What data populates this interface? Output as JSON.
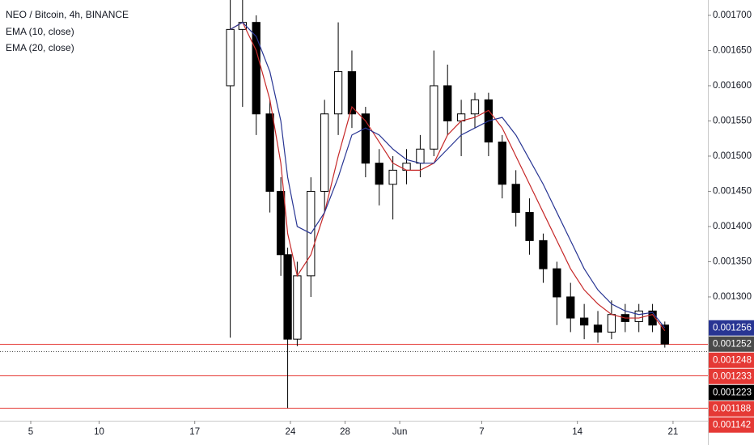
{
  "chart_data": {
    "type": "candlestick",
    "title": "NEO / Bitcoin, 4h, BINANCE",
    "x": [
      19.6,
      20.5,
      21.5,
      22.5,
      23.3,
      23.8,
      24.5,
      25.5,
      26.5,
      27.5,
      28.5,
      29.5,
      30.5,
      31.5,
      32.5,
      33.5,
      34.5,
      35.5,
      36.5,
      37.5,
      38.5,
      39.5,
      40.5,
      41.5,
      42.5,
      43.5,
      44.5,
      45.5,
      46.5,
      47.5,
      48.5,
      49.5,
      50.5,
      51.4
    ],
    "open": [
      0.0016,
      0.00168,
      0.00169,
      0.00156,
      0.00145,
      0.00136,
      0.00124,
      0.00133,
      0.00145,
      0.00156,
      0.00162,
      0.00156,
      0.00149,
      0.00146,
      0.00148,
      0.00149,
      0.00151,
      0.0016,
      0.00155,
      0.00156,
      0.00158,
      0.00152,
      0.00146,
      0.00142,
      0.00138,
      0.00134,
      0.0013,
      0.00127,
      0.00126,
      0.00125,
      0.001275,
      0.001265,
      0.00128,
      0.00126
    ],
    "high": [
      0.001725,
      0.001725,
      0.0017,
      0.00158,
      0.00147,
      0.00137,
      0.00135,
      0.00147,
      0.00158,
      0.00169,
      0.00165,
      0.00157,
      0.00151,
      0.0015,
      0.00151,
      0.00153,
      0.00165,
      0.00163,
      0.00158,
      0.00159,
      0.00159,
      0.00153,
      0.00148,
      0.00144,
      0.00139,
      0.00135,
      0.00132,
      0.00129,
      0.00128,
      0.001295,
      0.00129,
      0.00129,
      0.00129,
      0.001265
    ],
    "low": [
      0.001242,
      0.00157,
      0.00153,
      0.00142,
      0.00133,
      0.001142,
      0.00123,
      0.0013,
      0.00142,
      0.00153,
      0.00154,
      0.00147,
      0.00143,
      0.00141,
      0.00146,
      0.00147,
      0.0015,
      0.00153,
      0.0015,
      0.00154,
      0.0015,
      0.00144,
      0.0014,
      0.00136,
      0.00132,
      0.00126,
      0.00125,
      0.00124,
      0.001235,
      0.00124,
      0.00125,
      0.00125,
      0.00125,
      0.001228
    ],
    "close": [
      0.00168,
      0.00169,
      0.00156,
      0.00145,
      0.00136,
      0.00124,
      0.00133,
      0.00145,
      0.00156,
      0.00162,
      0.00156,
      0.00149,
      0.00146,
      0.00148,
      0.00149,
      0.00151,
      0.0016,
      0.00155,
      0.00156,
      0.00158,
      0.00152,
      0.00146,
      0.00142,
      0.00138,
      0.00134,
      0.0013,
      0.00127,
      0.00126,
      0.00125,
      0.001275,
      0.001265,
      0.00128,
      0.00126,
      0.001233
    ],
    "up_color": "#ffffff",
    "down_color": "#000000",
    "series": [
      {
        "name": "EMA (10, close)",
        "color": "#c62828",
        "values": [
          0.00168,
          0.00169,
          0.00165,
          0.00158,
          0.00149,
          0.00139,
          0.00133,
          0.00136,
          0.00142,
          0.0015,
          0.00157,
          0.00155,
          0.00152,
          0.00149,
          0.00148,
          0.00148,
          0.00149,
          0.00153,
          0.00155,
          0.001555,
          0.001565,
          0.00154,
          0.0015,
          0.00146,
          0.00142,
          0.00138,
          0.00134,
          0.00131,
          0.00129,
          0.001275,
          0.00127,
          0.00127,
          0.001275,
          0.001252
        ]
      },
      {
        "name": "EMA (20, close)",
        "color": "#283593",
        "values": [
          0.00168,
          0.00169,
          0.00167,
          0.00162,
          0.00155,
          0.00147,
          0.0014,
          0.00139,
          0.00142,
          0.00147,
          0.00153,
          0.00154,
          0.00153,
          0.00151,
          0.001495,
          0.00149,
          0.00149,
          0.00151,
          0.00153,
          0.00154,
          0.00155,
          0.001555,
          0.00153,
          0.001495,
          0.00146,
          0.00142,
          0.00138,
          0.00134,
          0.00131,
          0.00129,
          0.00128,
          0.001275,
          0.001278,
          0.001256
        ]
      }
    ],
    "xlim": [
      2.75,
      54.55
    ],
    "xticks": [
      5,
      10,
      17,
      24,
      28,
      {
        "value": 32,
        "label": "Jun"
      },
      {
        "value": 38,
        "label": "7"
      },
      {
        "value": 45,
        "label": "14"
      },
      {
        "value": 52,
        "label": "21"
      }
    ],
    "ylim": [
      0.0011241,
      0.0017218
    ],
    "yticks": [
      {
        "value": 0.0017,
        "label": "0.001700"
      },
      {
        "value": 0.00165,
        "label": "0.001650"
      },
      {
        "value": 0.0016,
        "label": "0.001600"
      },
      {
        "value": 0.00155,
        "label": "0.001550"
      },
      {
        "value": 0.0015,
        "label": "0.001500"
      },
      {
        "value": 0.00145,
        "label": "0.001450"
      },
      {
        "value": 0.0014,
        "label": "0.001400"
      },
      {
        "value": 0.00135,
        "label": "0.001350"
      },
      {
        "value": 0.0013,
        "label": "0.001300"
      }
    ],
    "levels": [
      {
        "value": 0.001256,
        "label": "0.001256",
        "color": "#283593",
        "line": "none"
      },
      {
        "value": 0.001252,
        "label": "0.001252",
        "color": "#4a4a4a",
        "line": "none"
      },
      {
        "value": 0.001248,
        "label": "0.001248",
        "color": "#e53935",
        "line": "none"
      },
      {
        "value": 0.001233,
        "label": "0.001233",
        "color": "#e53935",
        "line": "solid"
      },
      {
        "value": 0.001223,
        "label": "0.001223",
        "color": "#000000",
        "line": "dotted"
      },
      {
        "value": 0.001188,
        "label": "0.001188",
        "color": "#e53935",
        "line": "solid"
      },
      {
        "value": 0.001142,
        "label": "0.001142",
        "color": "#e53935",
        "line": "solid"
      }
    ]
  }
}
